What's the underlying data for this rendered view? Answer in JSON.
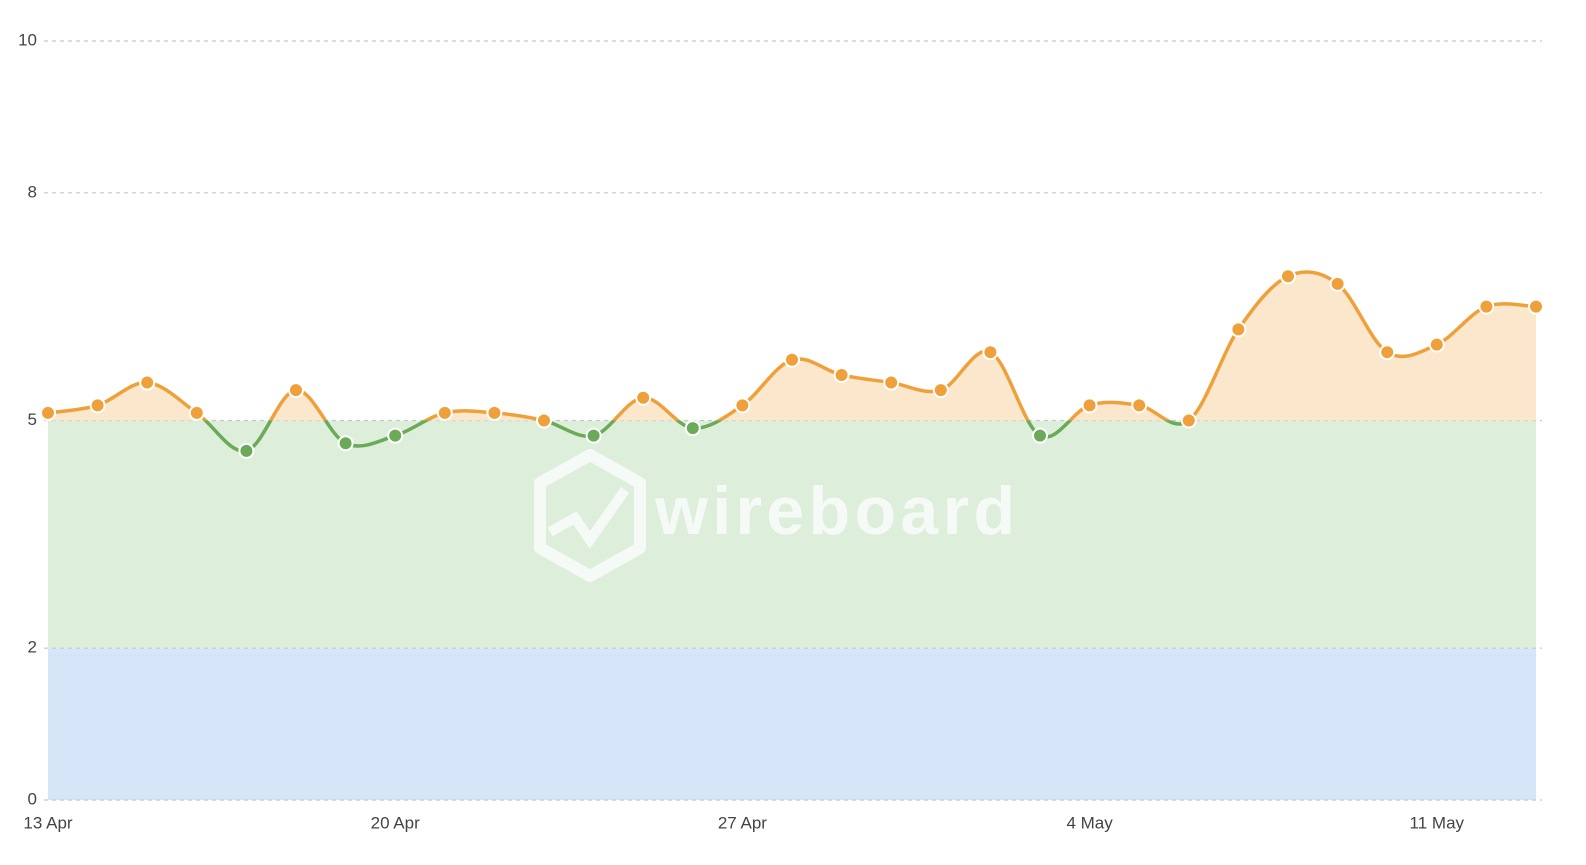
{
  "chart_data": {
    "type": "line",
    "watermark": "wireboard",
    "categories": [
      "13 Apr",
      null,
      null,
      null,
      null,
      null,
      null,
      "20 Apr",
      null,
      null,
      null,
      null,
      null,
      null,
      "27 Apr",
      null,
      null,
      null,
      null,
      null,
      null,
      "4 May",
      null,
      null,
      null,
      null,
      null,
      null,
      "11 May",
      null,
      null
    ],
    "values": [
      5.1,
      5.2,
      5.5,
      5.1,
      4.6,
      5.4,
      4.7,
      4.8,
      5.1,
      5.1,
      5.0,
      4.8,
      5.3,
      4.9,
      5.2,
      5.8,
      5.6,
      5.5,
      5.4,
      5.9,
      4.8,
      5.2,
      5.2,
      5.0,
      6.2,
      6.9,
      6.8,
      5.9,
      6.0,
      6.5,
      6.5
    ],
    "color": "#f0a03a",
    "below_color": "#6aaa58",
    "threshold": 5,
    "bands": [
      {
        "from": 0,
        "to": 2,
        "color": "#d6e6f8"
      },
      {
        "from": 2,
        "to": 5,
        "color": "#ddeedb"
      }
    ],
    "above_fill": "#fae7cc",
    "ylim": [
      0,
      10
    ],
    "yticks": [
      0,
      2,
      5,
      8,
      10
    ],
    "grid": true
  }
}
